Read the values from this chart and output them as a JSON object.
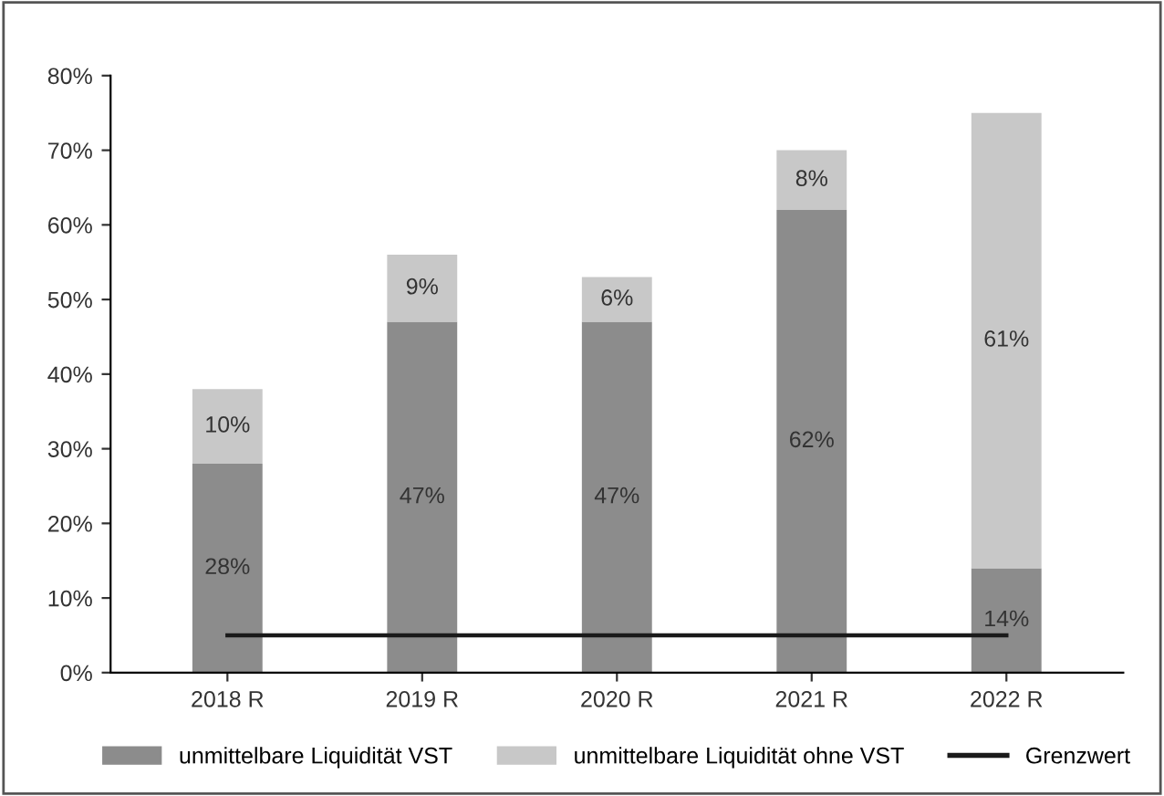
{
  "chart_data": {
    "type": "bar",
    "stacked": true,
    "categories": [
      "2018 R",
      "2019 R",
      "2020 R",
      "2021 R",
      "2022 R"
    ],
    "series": [
      {
        "name": "unmittelbare Liquidität VST",
        "color": "#8c8c8c",
        "values": [
          28,
          47,
          47,
          62,
          14
        ],
        "value_labels": [
          "28%",
          "47%",
          "47%",
          "62%",
          "14%"
        ]
      },
      {
        "name": "unmittelbare Liquidität ohne VST",
        "color": "#c8c8c8",
        "values": [
          10,
          9,
          6,
          8,
          61
        ],
        "value_labels": [
          "10%",
          "9%",
          "6%",
          "8%",
          "61%"
        ]
      },
      {
        "name": "Grenzwert",
        "type": "line",
        "color": "#1a1a1a",
        "values": [
          5,
          5,
          5,
          5,
          5
        ]
      }
    ],
    "ylim": [
      0,
      80
    ],
    "yticks": [
      {
        "value": 0,
        "label": "0%"
      },
      {
        "value": 10,
        "label": "10%"
      },
      {
        "value": 20,
        "label": "20%"
      },
      {
        "value": 30,
        "label": "30%"
      },
      {
        "value": 40,
        "label": "40%"
      },
      {
        "value": 50,
        "label": "50%"
      },
      {
        "value": 60,
        "label": "60%"
      },
      {
        "value": 70,
        "label": "70%"
      },
      {
        "value": 80,
        "label": "80%"
      }
    ],
    "legend": "bottom"
  }
}
